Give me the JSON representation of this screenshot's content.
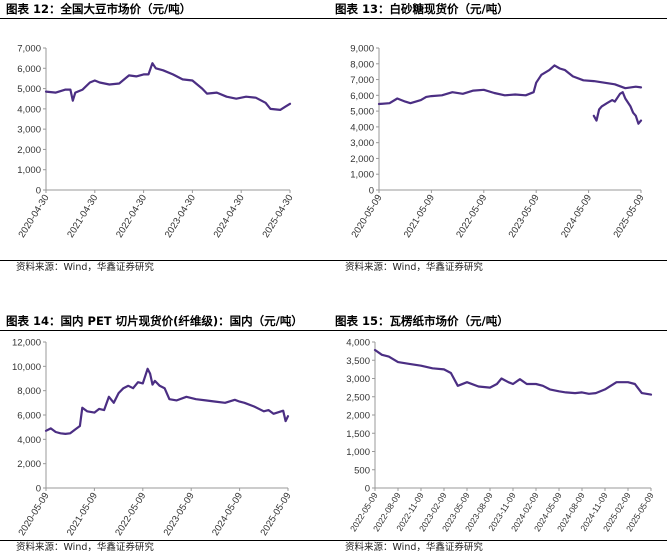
{
  "charts": [
    {
      "title": "图表 12：全国大豆市场价（元/吨）",
      "source": "资料来源：Wind，华鑫证券研究",
      "chart_data": {
        "type": "line",
        "title": "",
        "xlabel": "",
        "ylabel": "",
        "ylim": [
          0,
          7000
        ],
        "yticks": [
          "0",
          "1,000",
          "2,000",
          "3,000",
          "4,000",
          "5,000",
          "6,000",
          "7,000"
        ],
        "yticks_values": [
          0,
          1000,
          2000,
          3000,
          4000,
          5000,
          6000,
          7000
        ],
        "xticks": [
          "2020-04-30",
          "2021-04-30",
          "2022-04-30",
          "2023-04-30",
          "2024-04-30",
          "2025-04-30"
        ],
        "xlim": [
          0,
          5
        ],
        "grid": false,
        "line_color": "#4b2e83",
        "series": [
          {
            "x": [
              0,
              0.2,
              0.4,
              0.5,
              0.55,
              0.6,
              0.75,
              0.9,
              1.0,
              1.1,
              1.3,
              1.5,
              1.7,
              1.85,
              2.0,
              2.1,
              2.18,
              2.25,
              2.4,
              2.6,
              2.8,
              3.0,
              3.2,
              3.3,
              3.5,
              3.7,
              3.9,
              4.1,
              4.3,
              4.5,
              4.6,
              4.8,
              4.9,
              5.0
            ],
            "values": [
              4850,
              4800,
              4950,
              4950,
              4400,
              4800,
              4950,
              5300,
              5400,
              5300,
              5200,
              5250,
              5650,
              5600,
              5700,
              5700,
              6250,
              6000,
              5900,
              5700,
              5450,
              5400,
              5000,
              4750,
              4800,
              4600,
              4500,
              4600,
              4550,
              4300,
              4000,
              3950,
              4100,
              4250
            ]
          }
        ]
      }
    },
    {
      "title": "图表 13：白砂糖现货价（元/吨）",
      "source": "资料来源：Wind，华鑫证券研究",
      "chart_data": {
        "type": "line",
        "title": "",
        "xlabel": "",
        "ylabel": "",
        "ylim": [
          0,
          9000
        ],
        "yticks": [
          "0",
          "1,000",
          "2,000",
          "3,000",
          "4,000",
          "5,000",
          "6,000",
          "7,000",
          "8,000",
          "9,000"
        ],
        "yticks_values": [
          0,
          1000,
          2000,
          3000,
          4000,
          5000,
          6000,
          7000,
          8000,
          9000
        ],
        "xticks": [
          "2020-05-09",
          "2021-05-09",
          "2022-05-09",
          "2023-05-09",
          "2024-05-09",
          "2025-05-09"
        ],
        "xlim": [
          0,
          5
        ],
        "grid": false,
        "line_color": "#4b2e83",
        "series": [
          {
            "x": [
              0,
              0.2,
              0.35,
              0.5,
              0.6,
              0.8,
              0.9,
              1.0,
              1.2,
              1.4,
              1.6,
              1.8,
              2.0,
              2.2,
              2.4,
              2.6,
              2.8,
              2.95,
              3.0,
              3.1,
              3.25,
              3.35,
              3.45,
              3.55,
              3.7,
              3.9,
              4.1,
              4.3,
              4.5,
              4.7,
              4.9,
              5.0
            ],
            "values": [
              5450,
              5500,
              5800,
              5600,
              5500,
              5700,
              5900,
              5950,
              6000,
              6200,
              6100,
              6300,
              6350,
              6150,
              6000,
              6050,
              6000,
              6200,
              6800,
              7300,
              7600,
              7900,
              7700,
              7600,
              7200,
              6950,
              6900,
              6800,
              6700,
              6450,
              6550,
              6500
            ]
          },
          {
            "x": [
              4.1,
              4.15,
              4.2,
              4.25,
              4.35,
              4.45,
              4.5,
              4.6,
              4.65,
              4.7,
              4.8,
              4.85,
              4.9,
              4.95,
              5.0
            ],
            "values": [
              4700,
              4400,
              5100,
              5300,
              5500,
              5700,
              5600,
              6100,
              6200,
              5800,
              5300,
              4900,
              4700,
              4200,
              4400
            ]
          }
        ]
      }
    },
    {
      "title": "图表 14：国内 PET 切片现货价(纤维级)：国内（元/吨）",
      "source": "资料来源：Wind，华鑫证券研究",
      "chart_data": {
        "type": "line",
        "title": "",
        "xlabel": "",
        "ylabel": "",
        "ylim": [
          0,
          12000
        ],
        "yticks": [
          "0",
          "2,000",
          "4,000",
          "6,000",
          "8,000",
          "10,000",
          "12,000"
        ],
        "yticks_values": [
          0,
          2000,
          4000,
          6000,
          8000,
          10000,
          12000
        ],
        "xticks": [
          "2020-05-09",
          "2021-05-09",
          "2022-05-09",
          "2023-05-09",
          "2024-05-09",
          "2025-05-09"
        ],
        "xlim": [
          0,
          5
        ],
        "grid": false,
        "line_color": "#4b2e83",
        "series": [
          {
            "x": [
              0,
              0.1,
              0.2,
              0.3,
              0.4,
              0.5,
              0.6,
              0.7,
              0.75,
              0.85,
              1.0,
              1.1,
              1.2,
              1.3,
              1.4,
              1.5,
              1.6,
              1.7,
              1.8,
              1.9,
              2.0,
              2.1,
              2.15,
              2.2,
              2.25,
              2.35,
              2.45,
              2.55,
              2.7,
              2.9,
              3.1,
              3.3,
              3.5,
              3.7,
              3.9,
              4.0,
              4.1,
              4.3,
              4.5,
              4.6,
              4.7,
              4.9,
              4.95,
              5.0
            ],
            "values": [
              4700,
              4900,
              4600,
              4500,
              4450,
              4500,
              4800,
              5100,
              6600,
              6300,
              6200,
              6500,
              6400,
              7500,
              7000,
              7800,
              8200,
              8400,
              8200,
              8700,
              8600,
              9800,
              9400,
              8500,
              8800,
              8400,
              8200,
              7300,
              7200,
              7500,
              7300,
              7200,
              7100,
              7000,
              7250,
              7100,
              7000,
              6700,
              6300,
              6400,
              6100,
              6350,
              5500,
              5900
            ]
          }
        ]
      }
    },
    {
      "title": "图表 15：瓦楞纸市场价（元/吨）",
      "source": "资料来源：Wind，华鑫证券研究",
      "chart_data": {
        "type": "line",
        "title": "",
        "xlabel": "",
        "ylabel": "",
        "ylim": [
          0,
          4000
        ],
        "yticks": [
          "0",
          "500",
          "1,000",
          "1,500",
          "2,000",
          "2,500",
          "3,000",
          "3,500",
          "4,000"
        ],
        "yticks_values": [
          0,
          500,
          1000,
          1500,
          2000,
          2500,
          3000,
          3500,
          4000
        ],
        "xticks": [
          "2022-05-09",
          "2022-08-09",
          "2022-11-09",
          "2023-02-09",
          "2023-05-09",
          "2023-08-09",
          "2023-11-09",
          "2024-02-09",
          "2024-05-09",
          "2024-08-09",
          "2024-11-09",
          "2025-02-09",
          "2025-05-09"
        ],
        "xlim": [
          0,
          12
        ],
        "grid": false,
        "line_color": "#4b2e83",
        "series": [
          {
            "x": [
              0,
              0.3,
              0.6,
              1.0,
              1.5,
              2.0,
              2.5,
              3.0,
              3.3,
              3.6,
              4.0,
              4.5,
              5.0,
              5.3,
              5.5,
              5.8,
              6.0,
              6.3,
              6.6,
              7.0,
              7.3,
              7.6,
              8.0,
              8.3,
              8.7,
              9.0,
              9.3,
              9.6,
              10.0,
              10.5,
              11.0,
              11.3,
              11.6,
              12.0
            ],
            "values": [
              3780,
              3650,
              3600,
              3450,
              3400,
              3350,
              3280,
              3250,
              3150,
              2800,
              2900,
              2780,
              2750,
              2850,
              3000,
              2900,
              2850,
              2980,
              2850,
              2850,
              2800,
              2700,
              2650,
              2620,
              2600,
              2620,
              2580,
              2600,
              2700,
              2900,
              2900,
              2850,
              2600,
              2560
            ]
          }
        ]
      }
    }
  ]
}
